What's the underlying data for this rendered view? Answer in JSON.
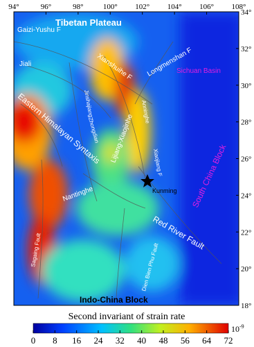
{
  "map": {
    "xticks": [
      {
        "value": 94,
        "label": "94°"
      },
      {
        "value": 96,
        "label": "96°"
      },
      {
        "value": 98,
        "label": "98°"
      },
      {
        "value": 100,
        "label": "100°"
      },
      {
        "value": 102,
        "label": "102°"
      },
      {
        "value": 104,
        "label": "104°"
      },
      {
        "value": 106,
        "label": "106°"
      },
      {
        "value": 108,
        "label": "108°"
      }
    ],
    "yticks": [
      {
        "value": 34,
        "label": "34°"
      },
      {
        "value": 32,
        "label": "32°"
      },
      {
        "value": 30,
        "label": "30°"
      },
      {
        "value": 28,
        "label": "28°"
      },
      {
        "value": 26,
        "label": "26°"
      },
      {
        "value": 24,
        "label": "24°"
      },
      {
        "value": 22,
        "label": "22°"
      },
      {
        "value": 20,
        "label": "20°"
      },
      {
        "value": 18,
        "label": "18°"
      }
    ],
    "xlim": [
      94,
      108
    ],
    "ylim": [
      18,
      34
    ],
    "labels": [
      "Tibetan Plateau",
      "Gaizi-Yushu F",
      "Jiali",
      "Xianshuihe F",
      "Longmenshan F",
      "Sichuan Basin",
      "Eastern Himalayan Syntaxis",
      "Jinshajiang",
      "Zhongdian",
      "Lijiang-Xiaojinhe",
      "Anninghe",
      "Xiaojiang F",
      "Kunming",
      "South China Block",
      "Nantinghe",
      "Red River Fault",
      "Dien Bien Phu Fault",
      "Sagaing Fault",
      "Indo-China Block"
    ]
  },
  "colorbar": {
    "title": "Second invariant of strain rate",
    "lim": [
      0,
      72
    ],
    "ticks": [
      0,
      8,
      16,
      24,
      32,
      40,
      48,
      56,
      64,
      72
    ],
    "unit_base": "10",
    "unit_exponent": "-9"
  }
}
